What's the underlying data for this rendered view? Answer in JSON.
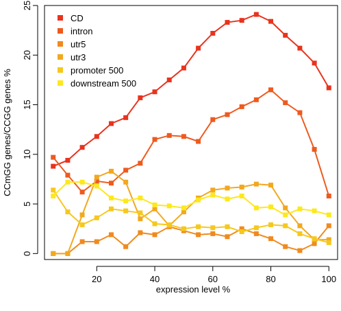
{
  "chart_data": {
    "type": "line",
    "title": "",
    "xlabel": "expression level %",
    "ylabel": "CCmGG genes/CCGG genes %",
    "xlim": [
      2,
      103
    ],
    "ylim": [
      -0.6,
      25
    ],
    "x_ticks": [
      20,
      40,
      60,
      80,
      100
    ],
    "y_ticks": [
      0,
      5,
      10,
      15,
      20,
      25
    ],
    "x": [
      5,
      10,
      15,
      20,
      25,
      30,
      35,
      40,
      45,
      50,
      55,
      60,
      65,
      70,
      75,
      80,
      85,
      90,
      95,
      100
    ],
    "legend_position": "top-left",
    "series": [
      {
        "name": "CD",
        "color": "#e8331e",
        "values": [
          8.8,
          9.4,
          10.7,
          11.8,
          13.1,
          13.7,
          15.7,
          16.3,
          17.5,
          18.7,
          20.7,
          22.2,
          23.3,
          23.5,
          24.1,
          23.4,
          22.0,
          20.7,
          19.2,
          16.7
        ]
      },
      {
        "name": "intron",
        "color": "#ee5a1e",
        "values": [
          9.7,
          7.9,
          6.2,
          7.3,
          7.1,
          8.4,
          9.1,
          11.5,
          11.9,
          11.8,
          11.3,
          13.5,
          14.0,
          14.8,
          15.5,
          16.5,
          15.2,
          14.2,
          10.5,
          5.8
        ]
      },
      {
        "name": "utr5",
        "color": "#f08a1e",
        "values": [
          0.0,
          0.0,
          1.2,
          1.2,
          1.9,
          0.7,
          2.1,
          1.9,
          2.7,
          2.3,
          1.9,
          2.0,
          1.7,
          2.5,
          2.0,
          1.5,
          0.7,
          0.3,
          1.0,
          2.8
        ]
      },
      {
        "name": "utr3",
        "color": "#f2a81e",
        "values": [
          0.0,
          0.0,
          3.9,
          7.7,
          8.3,
          7.2,
          3.5,
          4.5,
          2.8,
          4.2,
          5.6,
          6.4,
          6.6,
          6.7,
          7.0,
          6.9,
          4.6,
          2.8,
          1.4,
          1.4
        ]
      },
      {
        "name": "promoter 500",
        "color": "#f6c81e",
        "values": [
          6.4,
          4.2,
          2.9,
          3.6,
          4.5,
          4.3,
          4.1,
          3.0,
          2.9,
          2.5,
          2.7,
          2.6,
          2.7,
          2.2,
          2.6,
          2.9,
          2.8,
          2.0,
          1.5,
          1.1
        ]
      },
      {
        "name": "downstream 500",
        "color": "#fde81e",
        "values": [
          5.8,
          7.2,
          7.2,
          6.8,
          5.6,
          5.3,
          5.6,
          4.9,
          4.8,
          4.6,
          5.4,
          5.9,
          5.5,
          5.8,
          4.6,
          4.7,
          3.9,
          4.5,
          4.3,
          3.9
        ]
      }
    ]
  }
}
